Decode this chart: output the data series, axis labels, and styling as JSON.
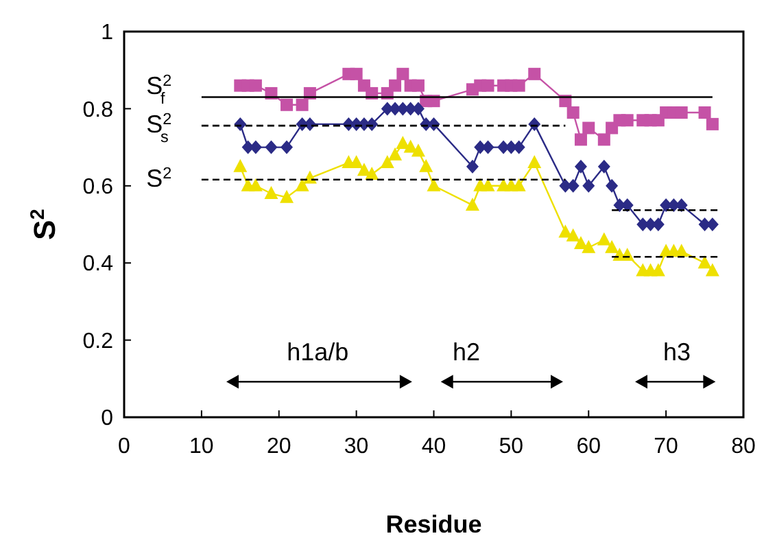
{
  "chart_data": {
    "type": "line",
    "xlabel": "Residue",
    "ylabel": "S$^{2}$",
    "xlim": [
      0,
      80
    ],
    "ylim": [
      0,
      1
    ],
    "xticks": [
      0,
      10,
      20,
      30,
      40,
      50,
      60,
      70,
      80
    ],
    "yticks": [
      0,
      0.2,
      0.4,
      0.6,
      0.8,
      1
    ],
    "grid": false,
    "x": [
      15,
      16,
      17,
      19,
      21,
      23,
      24,
      29,
      30,
      31,
      32,
      34,
      35,
      36,
      37,
      38,
      39,
      40,
      45,
      46,
      47,
      49,
      50,
      51,
      53,
      57,
      58,
      59,
      60,
      62,
      63,
      64,
      65,
      67,
      68,
      69,
      70,
      71,
      72,
      75,
      76
    ],
    "series": [
      {
        "color": "#c552a6",
        "marker": "square",
        "values": [
          0.86,
          0.86,
          0.86,
          0.84,
          0.81,
          0.81,
          0.84,
          0.89,
          0.89,
          0.86,
          0.84,
          0.84,
          0.86,
          0.89,
          0.86,
          0.86,
          0.82,
          0.82,
          0.85,
          0.86,
          0.86,
          0.86,
          0.86,
          0.86,
          0.89,
          0.82,
          0.79,
          0.72,
          0.75,
          0.72,
          0.75,
          0.77,
          0.77,
          0.77,
          0.77,
          0.77,
          0.79,
          0.79,
          0.79,
          0.79,
          0.76
        ]
      },
      {
        "color": "#2b2b86",
        "marker": "diamond",
        "values": [
          0.76,
          0.7,
          0.7,
          0.7,
          0.7,
          0.76,
          0.76,
          0.76,
          0.76,
          0.76,
          0.76,
          0.8,
          0.8,
          0.8,
          0.8,
          0.8,
          0.76,
          0.76,
          0.65,
          0.7,
          0.7,
          0.7,
          0.7,
          0.7,
          0.76,
          0.6,
          0.6,
          0.65,
          0.6,
          0.65,
          0.6,
          0.55,
          0.55,
          0.5,
          0.5,
          0.5,
          0.55,
          0.55,
          0.55,
          0.5,
          0.5
        ]
      },
      {
        "color": "#eee000",
        "marker": "triangle",
        "values": [
          0.65,
          0.6,
          0.6,
          0.58,
          0.57,
          0.6,
          0.62,
          0.66,
          0.66,
          0.64,
          0.63,
          0.66,
          0.68,
          0.71,
          0.7,
          0.69,
          0.65,
          0.6,
          0.55,
          0.6,
          0.6,
          0.6,
          0.6,
          0.6,
          0.66,
          0.48,
          0.47,
          0.45,
          0.44,
          0.46,
          0.44,
          0.42,
          0.42,
          0.38,
          0.38,
          0.38,
          0.43,
          0.43,
          0.43,
          0.4,
          0.38
        ]
      },
      {
        "color": "#000000",
        "marker": "none",
        "line_style": "solid",
        "x": [
          10,
          76
        ],
        "values": [
          0.83,
          0.83
        ]
      },
      {
        "color": "#000000",
        "marker": "none",
        "line_style": "dashed",
        "x": [
          10,
          57
        ],
        "values": [
          0.756,
          0.756
        ]
      },
      {
        "color": "#000000",
        "marker": "none",
        "line_style": "dashed",
        "x": [
          10,
          57
        ],
        "values": [
          0.616,
          0.616
        ]
      },
      {
        "color": "#000000",
        "marker": "none",
        "line_style": "dashed",
        "x": [
          63,
          77
        ],
        "values": [
          0.537,
          0.537
        ]
      },
      {
        "color": "#000000",
        "marker": "none",
        "line_style": "dashed",
        "x": [
          63,
          77
        ],
        "values": [
          0.416,
          0.416
        ]
      }
    ],
    "annotations": [
      "S$^{2}$$_{f}$",
      "S$^{2}$$_{s}$",
      "S$^{2}$",
      "h1a/b",
      "h2",
      "h3"
    ]
  }
}
